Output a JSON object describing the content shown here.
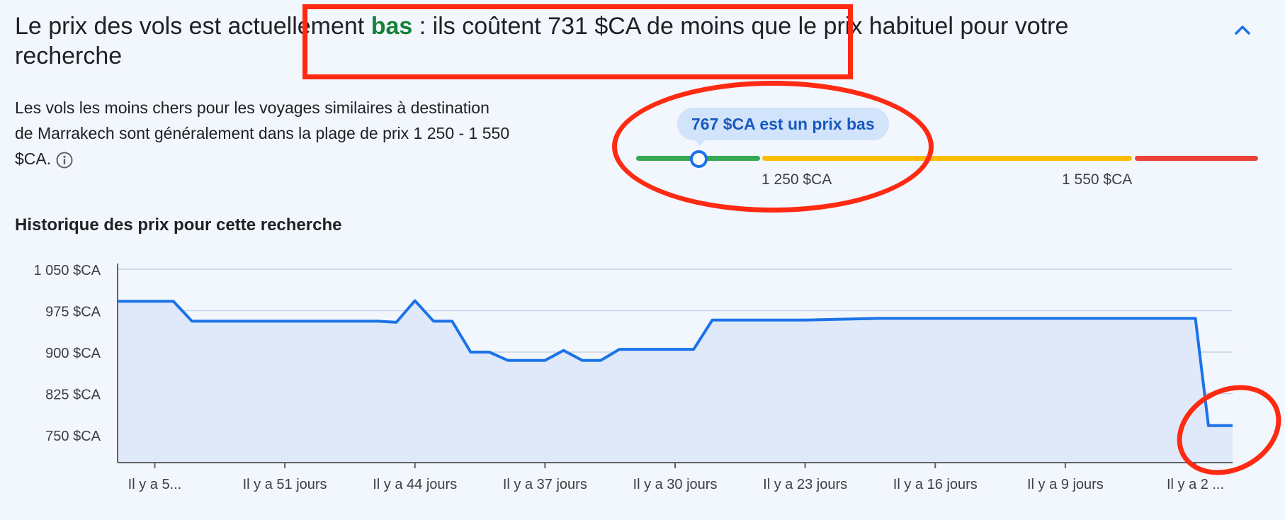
{
  "headline": {
    "before": "Le prix des vols est actuellement ",
    "status": "bas",
    "after": " : ils coûtent 731 $CA de moins que le prix habituel pour votre recherche"
  },
  "description": "Les vols les moins chers pour les voyages similaires à destination de Marrakech sont généralement dans la plage de prix 1 250 - 1 550 $CA.",
  "gauge": {
    "current_label": "767 $CA est un prix bas",
    "current_price": 767,
    "low_threshold_label": "1 250 $CA",
    "high_threshold_label": "1 550 $CA",
    "colors": {
      "low": "#34a853",
      "typical": "#fbbc04",
      "high": "#ea4335",
      "marker": "#1a73e8"
    }
  },
  "history": {
    "title": "Historique des prix pour cette recherche"
  },
  "chart_data": {
    "type": "area",
    "ylim": [
      700,
      1050
    ],
    "yticks": [
      750,
      825,
      900,
      975,
      1050
    ],
    "ytick_labels": [
      "750 $CA",
      "825 $CA",
      "900 $CA",
      "975 $CA",
      "1 050 $CA"
    ],
    "xlim": [
      -60,
      0
    ],
    "xticks": [
      -58,
      -51,
      -44,
      -37,
      -30,
      -23,
      -16,
      -9,
      -2
    ],
    "xtick_labels": [
      "Il y a 5...",
      "Il y a 51 jours",
      "Il y a 44 jours",
      "Il y a 37 jours",
      "Il y a 30 jours",
      "Il y a 23 jours",
      "Il y a 16 jours",
      "Il y a 9 jours",
      "Il y a 2 ..."
    ],
    "x": [
      -60,
      -57,
      -56,
      -50,
      -46,
      -45,
      -44,
      -43,
      -42,
      -41,
      -40,
      -39,
      -38,
      -37,
      -36,
      -35,
      -34,
      -33,
      -30,
      -29,
      -28,
      -24,
      -23,
      -19,
      -9,
      -2,
      -1.3,
      0
    ],
    "values": [
      992,
      992,
      956,
      956,
      956,
      954,
      993,
      956,
      956,
      900,
      900,
      885,
      885,
      885,
      903,
      885,
      885,
      905,
      905,
      905,
      958,
      958,
      958,
      961,
      961,
      961,
      767,
      767
    ],
    "grid": true,
    "line_color": "#1a73e8",
    "fill_color": "#e0e9fa",
    "annotation_color": "#ff2a12"
  }
}
